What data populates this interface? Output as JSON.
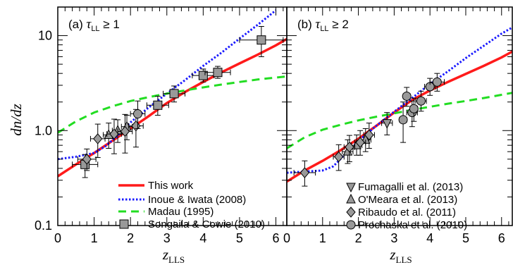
{
  "chart_data": [
    {
      "type": "line",
      "panel": "a",
      "title": "(a)",
      "condition": "τLL ≥ 1",
      "cond_symbol": "τ",
      "cond_sub": "LL",
      "cond_rest": " ≥ 1",
      "xlim": [
        0,
        6.3
      ],
      "ylim": [
        0.1,
        20
      ],
      "yscale": "log",
      "grid": false,
      "xticks": [
        "0",
        "1",
        "2",
        "3",
        "4",
        "5",
        "6"
      ],
      "xticks_values": [
        0,
        1,
        2,
        3,
        4,
        5,
        6
      ],
      "yticks": [
        "0.1",
        "1.0",
        "10"
      ],
      "yticks_values": [
        0.1,
        1.0,
        10
      ],
      "xlabel_main": "z",
      "xlabel_sub": "LLS",
      "ylabel": "dn/dz",
      "legend_position": "bottom-right",
      "lines": [
        {
          "name": "This work",
          "color": "#ff1a1a",
          "style": "solid",
          "x": [
            0,
            0.5,
            1,
            1.5,
            2,
            2.5,
            3,
            3.5,
            4,
            4.5,
            5,
            5.5,
            6,
            6.3
          ],
          "y": [
            0.33,
            0.44,
            0.58,
            0.78,
            1.05,
            1.42,
            1.95,
            2.55,
            3.25,
            4.1,
            5.1,
            6.3,
            7.9,
            9.2
          ]
        },
        {
          "name": "Inoue & Iwata (2008)",
          "color": "#1a1aff",
          "style": "dotted",
          "x": [
            0,
            0.5,
            1,
            1.3,
            1.6,
            2,
            2.5,
            3,
            3.5,
            4,
            4.5,
            5,
            5.5,
            6
          ],
          "y": [
            0.5,
            0.53,
            0.58,
            0.68,
            0.85,
            1.22,
            1.75,
            2.45,
            3.4,
            4.8,
            6.6,
            9.3,
            13,
            18.5
          ]
        },
        {
          "name": "Madau (1995)",
          "color": "#22dd22",
          "style": "dashed",
          "x": [
            0,
            0.5,
            1,
            1.5,
            2,
            2.5,
            3,
            3.5,
            4,
            4.5,
            5,
            5.5,
            6,
            6.3
          ],
          "y": [
            0.95,
            1.25,
            1.55,
            1.8,
            2.05,
            2.25,
            2.45,
            2.65,
            2.85,
            3.05,
            3.25,
            3.45,
            3.62,
            3.72
          ]
        }
      ],
      "points": [
        {
          "name": "Songaila & Cowie (2010)",
          "marker": "square",
          "color": "#999999",
          "x": [
            0.75,
            2.75,
            3.2,
            4.0,
            4.4,
            5.6
          ],
          "y": [
            0.44,
            1.85,
            2.45,
            3.8,
            4.1,
            9.0
          ],
          "xerr": [
            0.35,
            0.3,
            0.3,
            0.3,
            0.35,
            0.6
          ],
          "yerr_lo": [
            0.12,
            0.4,
            0.45,
            0.55,
            0.55,
            3.0
          ],
          "yerr_hi": [
            0.12,
            0.45,
            0.5,
            0.65,
            0.65,
            3.5
          ]
        },
        {
          "name": "O'Meara et al. (2013)",
          "marker": "triangle-up",
          "color": "#999999",
          "x": [
            1.4,
            1.65,
            1.9
          ],
          "y": [
            0.9,
            1.0,
            1.1
          ],
          "xerr": [
            0.15,
            0.15,
            0.15
          ],
          "yerr_lo": [
            0.25,
            0.25,
            0.3
          ],
          "yerr_hi": [
            0.3,
            0.3,
            0.35
          ]
        },
        {
          "name": "Ribaudo et al. (2011)",
          "marker": "diamond",
          "color": "#999999",
          "x": [
            0.8,
            1.1,
            1.55,
            1.85,
            2.15
          ],
          "y": [
            0.5,
            0.82,
            0.92,
            0.98,
            1.12
          ],
          "xerr": [
            0.25,
            0.2,
            0.2,
            0.2,
            0.2
          ],
          "yerr_lo": [
            0.12,
            0.3,
            0.35,
            0.4,
            0.45
          ],
          "yerr_hi": [
            0.14,
            0.35,
            0.4,
            0.5,
            0.55
          ]
        },
        {
          "name": "Prochaska et al. (2010)",
          "marker": "circle",
          "color": "#999999",
          "x": [
            2.2
          ],
          "y": [
            1.5
          ],
          "xerr": [
            0.2
          ],
          "yerr_lo": [
            0.45
          ],
          "yerr_hi": [
            0.55
          ]
        }
      ]
    },
    {
      "type": "line",
      "panel": "b",
      "title": "(b)",
      "condition": "τLL ≥ 2",
      "cond_symbol": "τ",
      "cond_sub": "LL",
      "cond_rest": " ≥ 2",
      "xlim": [
        0,
        6.3
      ],
      "ylim": [
        0.1,
        20
      ],
      "yscale": "log",
      "grid": false,
      "xticks": [
        "0",
        "1",
        "2",
        "3",
        "4",
        "5",
        "6"
      ],
      "xticks_values": [
        0,
        1,
        2,
        3,
        4,
        5,
        6
      ],
      "xlabel_main": "z",
      "xlabel_sub": "LLS",
      "legend_position": "bottom-right",
      "lines": [
        {
          "name": "This work",
          "color": "#ff1a1a",
          "style": "solid",
          "x": [
            0,
            0.5,
            1,
            1.5,
            2,
            2.5,
            3,
            3.5,
            4,
            4.5,
            5,
            5.5,
            6,
            6.3
          ],
          "y": [
            0.29,
            0.38,
            0.48,
            0.62,
            0.82,
            1.12,
            1.55,
            2.1,
            2.65,
            3.25,
            3.95,
            4.8,
            5.9,
            6.8
          ]
        },
        {
          "name": "Inoue & Iwata (2008)",
          "color": "#1a1aff",
          "style": "dotted",
          "x": [
            0,
            0.5,
            1,
            1.3,
            1.6,
            2,
            2.5,
            3,
            3.5,
            4,
            4.5,
            5,
            5.5,
            6,
            6.3
          ],
          "y": [
            0.36,
            0.37,
            0.38,
            0.42,
            0.55,
            0.78,
            1.12,
            1.58,
            2.2,
            3.1,
            4.2,
            5.8,
            7.8,
            10.5,
            12.2
          ]
        },
        {
          "name": "Madau (1995)",
          "color": "#22dd22",
          "style": "dashed",
          "x": [
            0,
            0.5,
            1,
            1.5,
            2,
            2.5,
            3,
            3.5,
            4,
            4.5,
            5,
            5.5,
            6,
            6.3
          ],
          "y": [
            0.65,
            0.85,
            1.02,
            1.15,
            1.28,
            1.4,
            1.52,
            1.65,
            1.78,
            1.92,
            2.05,
            2.2,
            2.38,
            2.5
          ]
        }
      ],
      "points": [
        {
          "name": "Fumagalli et al. (2013)",
          "marker": "triangle-down",
          "color": "#999999",
          "x": [
            2.8
          ],
          "y": [
            1.2
          ],
          "xerr": [
            0.15
          ],
          "yerr_lo": [
            0.3
          ],
          "yerr_hi": [
            0.35
          ]
        },
        {
          "name": "O'Meara et al. (2013)",
          "marker": "triangle-up",
          "color": "#999999",
          "x": [
            1.7,
            1.95,
            2.2
          ],
          "y": [
            0.6,
            0.7,
            0.8
          ],
          "xerr": [
            0.15,
            0.15,
            0.15
          ],
          "yerr_lo": [
            0.15,
            0.15,
            0.2
          ],
          "yerr_hi": [
            0.2,
            0.2,
            0.25
          ]
        },
        {
          "name": "Ribaudo et al. (2011)",
          "marker": "diamond",
          "color": "#999999",
          "x": [
            0.5,
            1.45,
            1.75,
            2.05,
            2.3
          ],
          "y": [
            0.36,
            0.53,
            0.67,
            0.75,
            0.9
          ],
          "xerr": [
            0.3,
            0.15,
            0.15,
            0.15,
            0.15
          ],
          "yerr_lo": [
            0.1,
            0.15,
            0.2,
            0.2,
            0.25
          ],
          "yerr_hi": [
            0.12,
            0.18,
            0.22,
            0.25,
            0.3
          ]
        },
        {
          "name": "Prochaska et al. (2010)",
          "marker": "circle",
          "color": "#999999",
          "x": [
            3.25,
            3.5,
            3.75,
            4.0,
            4.2,
            3.35,
            3.55
          ],
          "y": [
            1.3,
            1.55,
            2.05,
            2.9,
            3.25,
            2.3,
            1.7
          ],
          "xerr": [
            0.1,
            0.15,
            0.15,
            0.15,
            0.2,
            0.1,
            0.1
          ],
          "yerr_lo": [
            0.55,
            0.45,
            0.45,
            0.55,
            0.65,
            0.5,
            0.45
          ],
          "yerr_hi": [
            0.7,
            0.5,
            0.55,
            0.65,
            0.75,
            0.55,
            0.5
          ]
        }
      ]
    }
  ],
  "legend_a": [
    "This work",
    "Inoue & Iwata (2008)",
    "Madau (1995)",
    "Songaila & Cowie (2010)"
  ],
  "legend_b": [
    "Fumagalli et al. (2013)",
    "O'Meara et al. (2013)",
    "Ribaudo et al. (2011)",
    "Prochaska et al. (2010)"
  ]
}
